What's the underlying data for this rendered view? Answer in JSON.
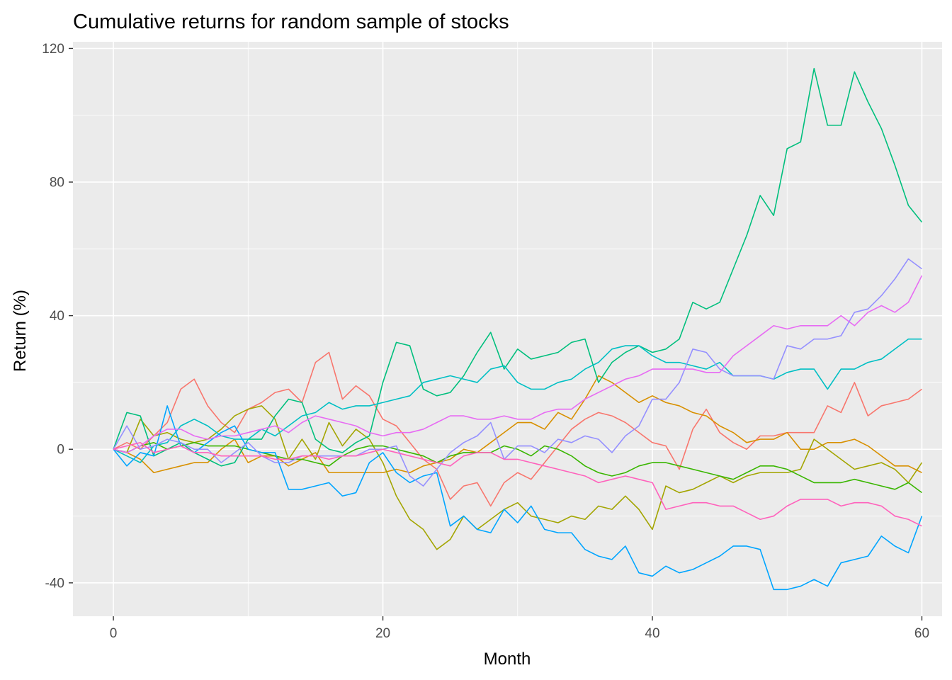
{
  "chart_data": {
    "type": "line",
    "title": "Cumulative returns for random sample of stocks",
    "xlabel": "Month",
    "ylabel": "Return (%)",
    "xlim": [
      -3,
      61.5
    ],
    "ylim": [
      -50,
      122
    ],
    "xticks": [
      0,
      20,
      40,
      60
    ],
    "yticks": [
      -40,
      0,
      40,
      80,
      120
    ],
    "x_tick_labels": [
      "0",
      "20",
      "40",
      "60"
    ],
    "y_tick_labels": [
      "-40",
      "0",
      "40",
      "80",
      "120"
    ],
    "grid": true,
    "legend": "none",
    "panel_background": "#ebebeb",
    "grid_color": "#ffffff",
    "x": [
      0,
      1,
      2,
      3,
      4,
      5,
      6,
      7,
      8,
      9,
      10,
      11,
      12,
      13,
      14,
      15,
      16,
      17,
      18,
      19,
      20,
      21,
      22,
      23,
      24,
      25,
      26,
      27,
      28,
      29,
      30,
      31,
      32,
      33,
      34,
      35,
      36,
      37,
      38,
      39,
      40,
      41,
      42,
      43,
      44,
      45,
      46,
      47,
      48,
      49,
      50,
      51,
      52,
      53,
      54,
      55,
      56,
      57,
      58,
      59,
      60
    ],
    "series": [
      {
        "color": "#F8766D",
        "values": [
          0,
          2,
          0,
          4,
          8,
          18,
          21,
          13,
          8,
          5,
          12,
          14,
          17,
          18,
          14,
          26,
          29,
          15,
          19,
          16,
          9,
          7,
          2,
          -3,
          -6,
          -15,
          -11,
          -10,
          -17,
          -10,
          -7,
          -9,
          -4,
          1,
          6,
          9,
          11,
          10,
          8,
          5,
          2,
          1,
          -6,
          6,
          12,
          5,
          2,
          0,
          4,
          4,
          5,
          5,
          5,
          13,
          11,
          20,
          10,
          13,
          14,
          15,
          18
        ]
      },
      {
        "color": "#D89000",
        "values": [
          0,
          -1,
          -3,
          -7,
          -6,
          -5,
          -4,
          -4,
          0,
          3,
          -4,
          -2,
          -2,
          -5,
          -3,
          -1,
          -7,
          -7,
          -7,
          -7,
          -7,
          -6,
          -7,
          -5,
          -4,
          -3,
          0,
          -1,
          2,
          5,
          8,
          8,
          6,
          11,
          9,
          15,
          22,
          20,
          17,
          14,
          16,
          14,
          13,
          11,
          10,
          7,
          5,
          2,
          3,
          3,
          5,
          0,
          0,
          2,
          2,
          3,
          1,
          -2,
          -5,
          -5,
          -7
        ]
      },
      {
        "color": "#A3A500",
        "values": [
          0,
          -1,
          9,
          4,
          5,
          3,
          2,
          3,
          6,
          10,
          12,
          13,
          9,
          -3,
          3,
          -3,
          8,
          1,
          6,
          3,
          -4,
          -14,
          -21,
          -24,
          -30,
          -27,
          -20,
          -24,
          -21,
          -18,
          -16,
          -20,
          -21,
          -22,
          -20,
          -21,
          -17,
          -18,
          -14,
          -18,
          -24,
          -11,
          -13,
          -12,
          -10,
          -8,
          -10,
          -8,
          -7,
          -7,
          -7,
          -6,
          3,
          0,
          -3,
          -6,
          -5,
          -4,
          -6,
          -10,
          -4
        ]
      },
      {
        "color": "#39B600",
        "values": [
          0,
          -1,
          1,
          2,
          0,
          1,
          2,
          1,
          1,
          1,
          0,
          -1,
          -2,
          -3,
          -3,
          -4,
          -5,
          -2,
          0,
          1,
          1,
          0,
          -1,
          -2,
          -4,
          -2,
          -1,
          -1,
          -1,
          1,
          0,
          -2,
          1,
          0,
          -2,
          -5,
          -7,
          -8,
          -7,
          -5,
          -4,
          -4,
          -5,
          -6,
          -7,
          -8,
          -9,
          -7,
          -5,
          -5,
          -6,
          -8,
          -10,
          -10,
          -10,
          -9,
          -10,
          -11,
          -12,
          -10,
          -13
        ]
      },
      {
        "color": "#00BF7D",
        "values": [
          0,
          11,
          10,
          -2,
          0,
          2,
          -1,
          -3,
          -5,
          -4,
          3,
          3,
          10,
          15,
          14,
          3,
          0,
          -1,
          2,
          4,
          20,
          32,
          31,
          18,
          16,
          17,
          22,
          29,
          35,
          24,
          30,
          27,
          28,
          29,
          32,
          33,
          20,
          26,
          29,
          31,
          29,
          30,
          33,
          44,
          42,
          44,
          54,
          64,
          76,
          70,
          90,
          92,
          114,
          97,
          97,
          113,
          104,
          96,
          85,
          73,
          68
        ]
      },
      {
        "color": "#00BFC4",
        "values": [
          0,
          -2,
          -4,
          1,
          2,
          7,
          9,
          7,
          4,
          3,
          3,
          6,
          4,
          7,
          10,
          11,
          14,
          12,
          13,
          13,
          14,
          15,
          16,
          20,
          21,
          22,
          21,
          20,
          24,
          25,
          20,
          18,
          18,
          20,
          21,
          24,
          26,
          30,
          31,
          31,
          28,
          26,
          26,
          25,
          24,
          26,
          22,
          22,
          22,
          21,
          23,
          24,
          24,
          18,
          24,
          24,
          26,
          27,
          30,
          33,
          33
        ]
      },
      {
        "color": "#00A5FF",
        "values": [
          0,
          -5,
          -1,
          -2,
          13,
          1,
          -1,
          2,
          5,
          7,
          0,
          -1,
          -1,
          -12,
          -12,
          -11,
          -10,
          -14,
          -13,
          -4,
          -1,
          -7,
          -10,
          -8,
          -7,
          -23,
          -20,
          -24,
          -25,
          -18,
          -22,
          -17,
          -24,
          -25,
          -25,
          -30,
          -32,
          -33,
          -29,
          -37,
          -38,
          -35,
          -37,
          -36,
          -34,
          -32,
          -29,
          -29,
          -30,
          -42,
          -42,
          -41,
          -39,
          -41,
          -34,
          -33,
          -32,
          -26,
          -29,
          -31,
          -20
        ]
      },
      {
        "color": "#9590FF",
        "values": [
          0,
          7,
          0,
          1,
          3,
          2,
          0,
          0,
          -4,
          -1,
          2,
          -2,
          -4,
          -4,
          -2,
          -2,
          -2,
          -2,
          -2,
          0,
          0,
          1,
          -8,
          -11,
          -6,
          -1,
          2,
          4,
          8,
          -3,
          1,
          1,
          -1,
          3,
          2,
          4,
          3,
          -1,
          4,
          7,
          15,
          15,
          20,
          30,
          29,
          24,
          22,
          22,
          22,
          21,
          31,
          30,
          33,
          33,
          34,
          41,
          42,
          46,
          51,
          57,
          54
        ]
      },
      {
        "color": "#E76BF3",
        "values": [
          0,
          -1,
          1,
          4,
          6,
          6,
          4,
          3,
          4,
          4,
          5,
          6,
          7,
          5,
          8,
          10,
          9,
          8,
          7,
          5,
          4,
          5,
          5,
          6,
          8,
          10,
          10,
          9,
          9,
          10,
          9,
          9,
          11,
          12,
          12,
          15,
          17,
          19,
          21,
          22,
          24,
          24,
          24,
          24,
          23,
          23,
          28,
          31,
          34,
          37,
          36,
          37,
          37,
          37,
          40,
          37,
          41,
          43,
          41,
          44,
          52
        ]
      },
      {
        "color": "#FF62BC",
        "values": [
          0,
          1,
          2,
          -1,
          0,
          1,
          -1,
          -1,
          -2,
          -2,
          -2,
          -2,
          -3,
          -3,
          -2,
          -2,
          -3,
          -2,
          -2,
          -1,
          0,
          -1,
          -2,
          -3,
          -4,
          -5,
          -2,
          -1,
          -1,
          -3,
          -3,
          -4,
          -5,
          -6,
          -7,
          -8,
          -10,
          -9,
          -8,
          -9,
          -10,
          -18,
          -17,
          -16,
          -16,
          -17,
          -17,
          -19,
          -21,
          -20,
          -17,
          -15,
          -15,
          -15,
          -17,
          -16,
          -16,
          -17,
          -20,
          -21,
          -23
        ]
      }
    ]
  }
}
